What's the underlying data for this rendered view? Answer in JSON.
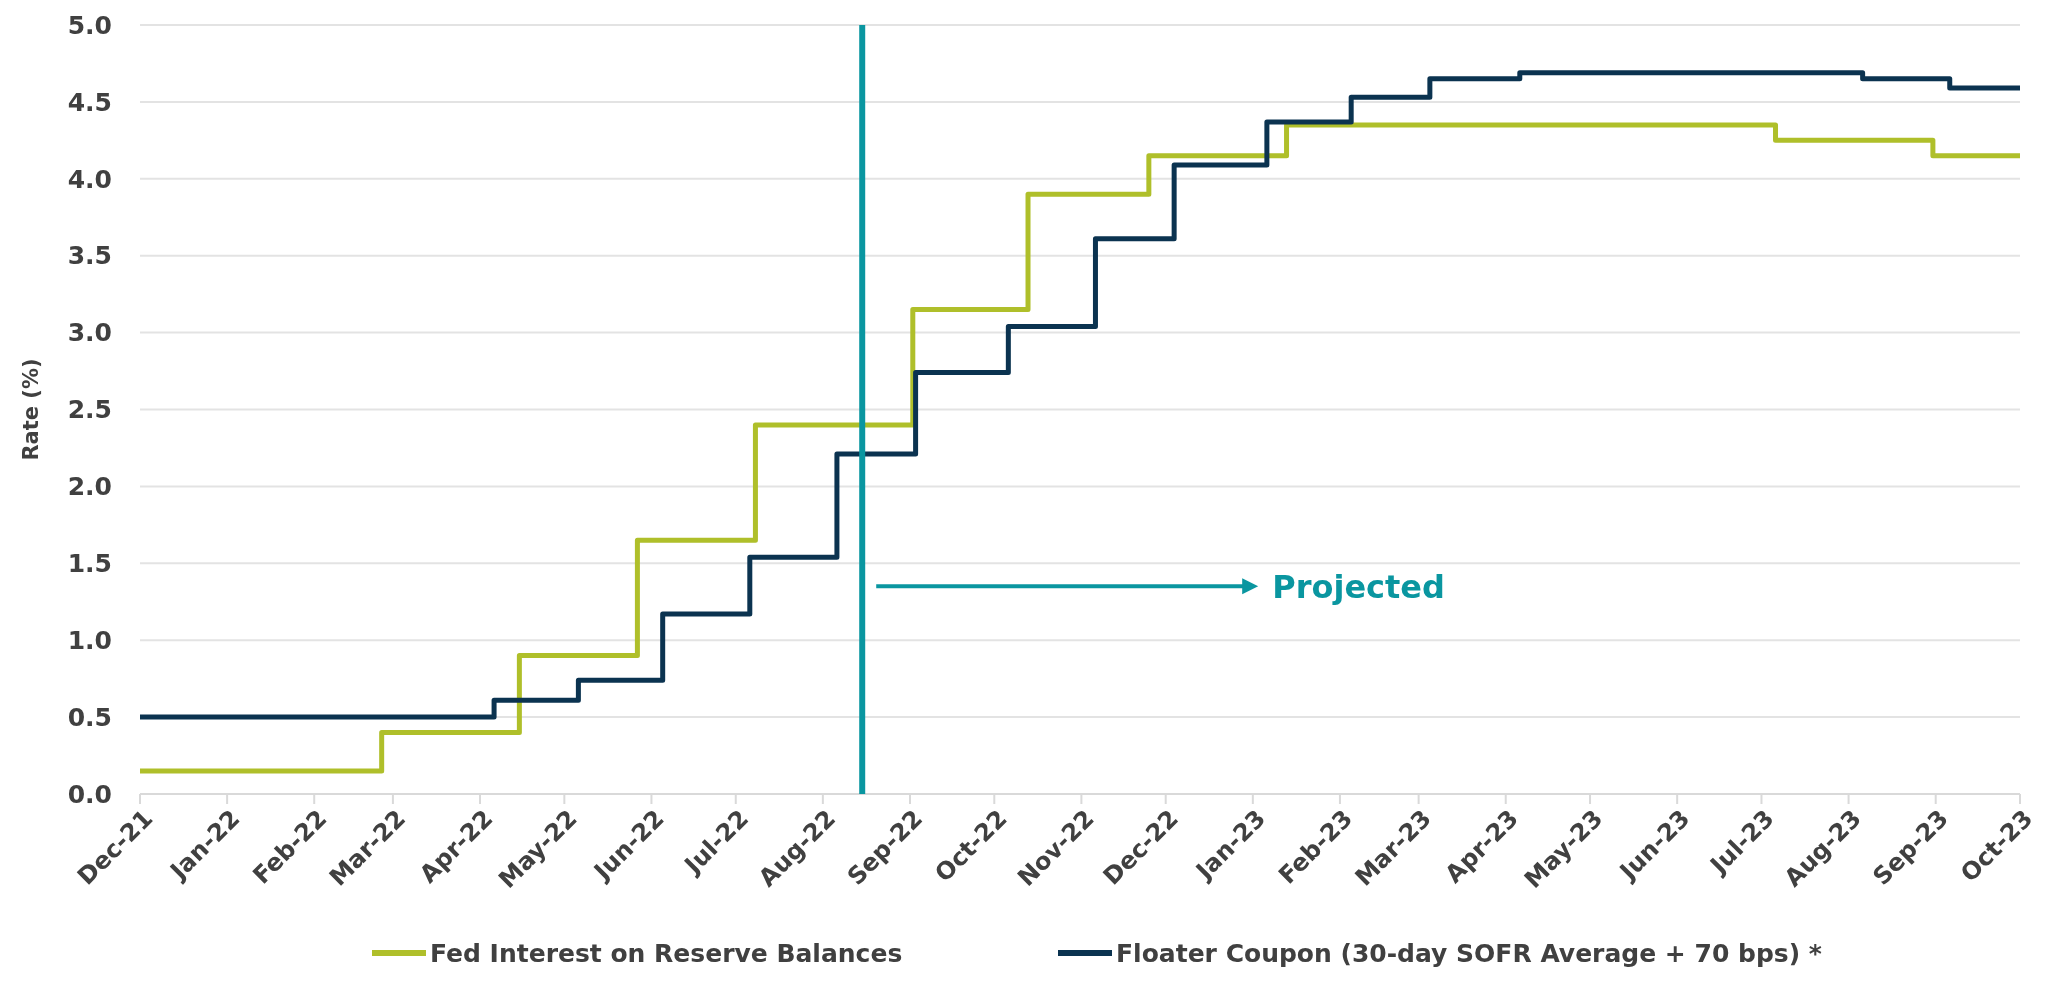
{
  "chart_data": {
    "type": "step",
    "ylabel": "Rate (%)",
    "xlim": [
      "2021-12-01",
      "2023-10-01"
    ],
    "xticks": [
      {
        "value": "2021-12-01",
        "label": "Dec-21"
      },
      {
        "value": "2022-01-01",
        "label": "Jan-22"
      },
      {
        "value": "2022-02-01",
        "label": "Feb-22"
      },
      {
        "value": "2022-03-01",
        "label": "Mar-22"
      },
      {
        "value": "2022-04-01",
        "label": "Apr-22"
      },
      {
        "value": "2022-05-01",
        "label": "May-22"
      },
      {
        "value": "2022-06-01",
        "label": "Jun-22"
      },
      {
        "value": "2022-07-01",
        "label": "Jul-22"
      },
      {
        "value": "2022-08-01",
        "label": "Aug-22"
      },
      {
        "value": "2022-09-01",
        "label": "Sep-22"
      },
      {
        "value": "2022-10-01",
        "label": "Oct-22"
      },
      {
        "value": "2022-11-01",
        "label": "Nov-22"
      },
      {
        "value": "2022-12-01",
        "label": "Dec-22"
      },
      {
        "value": "2023-01-01",
        "label": "Jan-23"
      },
      {
        "value": "2023-02-01",
        "label": "Feb-23"
      },
      {
        "value": "2023-03-01",
        "label": "Mar-23"
      },
      {
        "value": "2023-04-01",
        "label": "Apr-23"
      },
      {
        "value": "2023-05-01",
        "label": "May-23"
      },
      {
        "value": "2023-06-01",
        "label": "Jun-23"
      },
      {
        "value": "2023-07-01",
        "label": "Jul-23"
      },
      {
        "value": "2023-08-01",
        "label": "Aug-23"
      },
      {
        "value": "2023-09-01",
        "label": "Sep-23"
      },
      {
        "value": "2023-10-01",
        "label": "Oct-23"
      }
    ],
    "ylim": [
      0,
      5
    ],
    "yticks": [
      {
        "value": 0,
        "label": "0.0"
      },
      0.5,
      {
        "value": 1,
        "label": "1.0"
      },
      1.5,
      {
        "value": 2,
        "label": "2.0"
      },
      2.5,
      {
        "value": 3,
        "label": "3.0"
      },
      3.5,
      {
        "value": 4,
        "label": "4.0"
      },
      4.5,
      {
        "value": 5,
        "label": "5.0"
      }
    ],
    "grid": "y",
    "legend": "bottom",
    "line_style": "solid",
    "marker": "none",
    "series": [
      {
        "name": "Fed Interest on Reserve Balances",
        "color": "#afbf2a",
        "x": [
          "2021-12-01",
          "2022-02-25",
          "2022-04-15",
          "2022-05-27",
          "2022-07-08",
          "2022-09-02",
          "2022-10-13",
          "2022-11-25",
          "2023-01-13",
          "2023-07-06",
          "2023-08-31",
          "2023-10-01"
        ],
        "values": [
          0.15,
          0.4,
          0.9,
          1.65,
          2.4,
          3.15,
          3.9,
          4.15,
          4.35,
          4.25,
          4.15,
          4.15
        ]
      },
      {
        "name": "Floater Coupon (30-day SOFR Average + 70 bps) *",
        "color": "#0b3350",
        "x": [
          "2021-12-01",
          "2022-04-06",
          "2022-05-06",
          "2022-06-05",
          "2022-07-06",
          "2022-08-06",
          "2022-09-03",
          "2022-10-06",
          "2022-11-06",
          "2022-12-04",
          "2023-01-06",
          "2023-02-05",
          "2023-03-05",
          "2023-04-06",
          "2023-08-06",
          "2023-09-06",
          "2023-10-01"
        ],
        "values": [
          0.5,
          0.61,
          0.74,
          1.17,
          1.54,
          2.21,
          2.74,
          3.04,
          3.61,
          4.09,
          4.37,
          4.53,
          4.65,
          4.69,
          4.65,
          4.59,
          4.59
        ]
      }
    ],
    "ref_lines": [
      {
        "axis": "x",
        "value": "2022-08-15",
        "color": "#0a96a0"
      }
    ],
    "annotations": [
      "Projected"
    ]
  }
}
